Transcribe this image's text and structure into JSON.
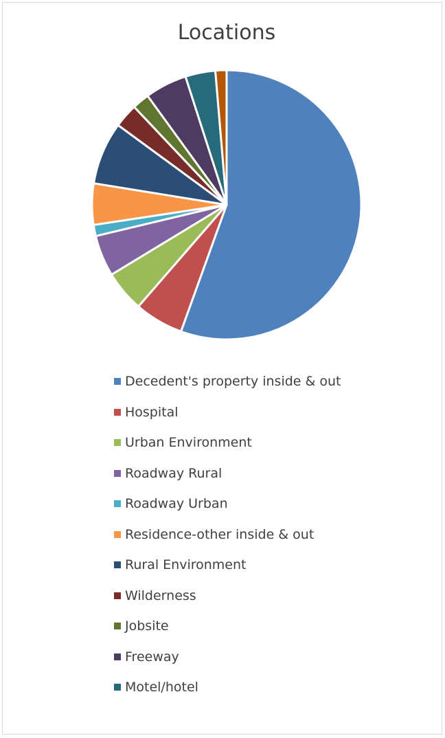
{
  "chart_data": {
    "type": "pie",
    "title": "Locations",
    "legend_position": "bottom",
    "slices": [
      {
        "label": "Decedent's property inside & out",
        "value": 53.9,
        "color": "#4f81bd"
      },
      {
        "label": "Hospital",
        "value": 5.7,
        "color": "#c0504d"
      },
      {
        "label": "Urban Environment",
        "value": 4.8,
        "color": "#9bbb59"
      },
      {
        "label": "Roadway Rural",
        "value": 4.8,
        "color": "#8064a2"
      },
      {
        "label": "Roadway Urban",
        "value": 1.3,
        "color": "#4bacc6"
      },
      {
        "label": "Residence-other inside & out",
        "value": 4.8,
        "color": "#f79646"
      },
      {
        "label": "Rural Environment",
        "value": 7.3,
        "color": "#2c4d75"
      },
      {
        "label": "Wilderness",
        "value": 2.8,
        "color": "#772c2a"
      },
      {
        "label": "Jobsite",
        "value": 2.0,
        "color": "#5f7530"
      },
      {
        "label": "Freeway",
        "value": 4.9,
        "color": "#4d3b62"
      },
      {
        "label": "Motel/hotel",
        "value": 3.5,
        "color": "#276a7c"
      },
      {
        "label": "",
        "value": 1.3,
        "color": "#b65708"
      }
    ]
  }
}
